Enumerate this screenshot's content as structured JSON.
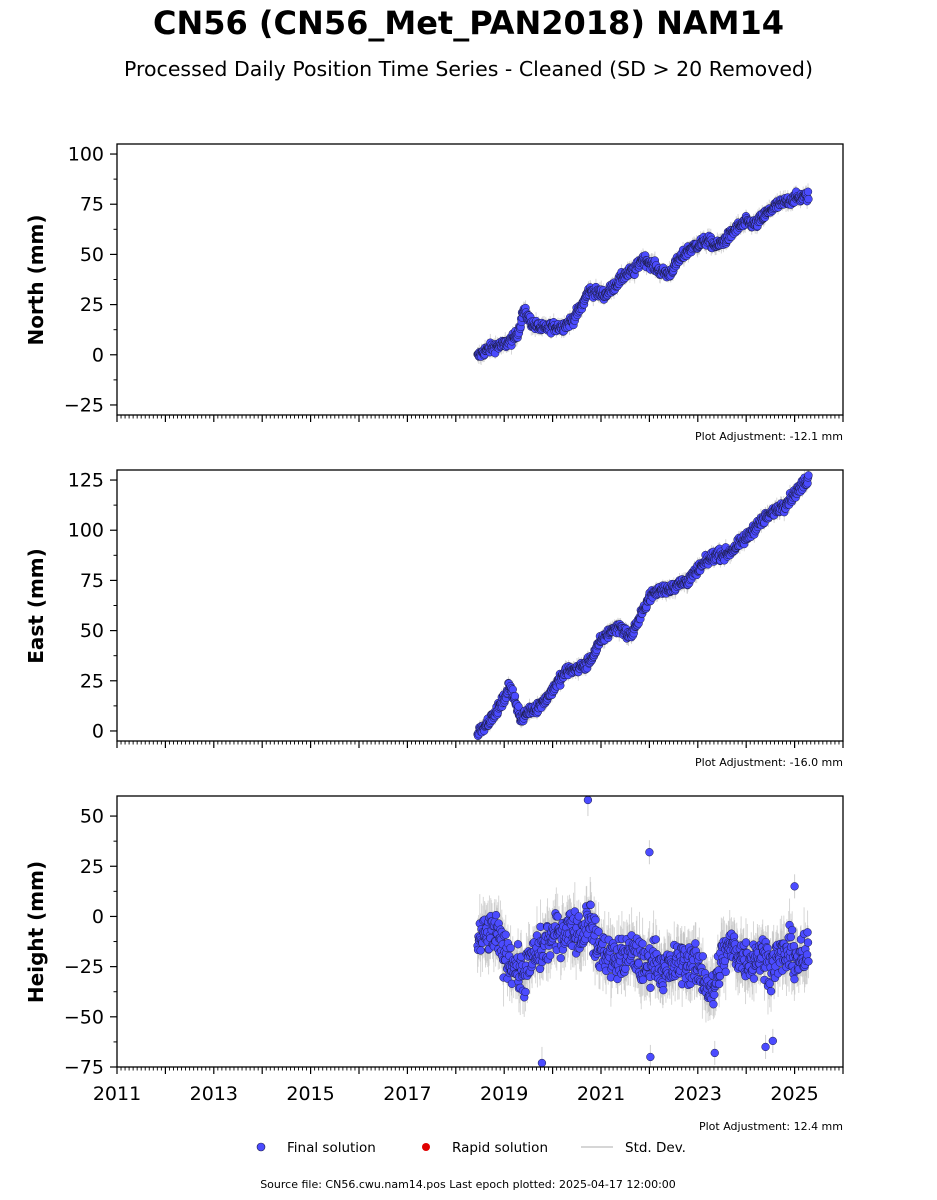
{
  "header": {
    "title": "CN56 (CN56_Met_PAN2018) NAM14",
    "subtitle": "Processed Daily Position Time Series - Cleaned (SD > 20 Removed)"
  },
  "chart_data": [
    {
      "type": "scatter",
      "ylabel": "North (mm)",
      "ylim": [
        -30,
        105
      ],
      "yticks": [
        100,
        75,
        50,
        25,
        0,
        -25
      ],
      "ytick_labels": [
        "100",
        "75",
        "50",
        "25",
        "0",
        "−25"
      ],
      "xlim": [
        2011.0,
        2026.0
      ],
      "adjustment": "Plot Adjustment: -12.1 mm",
      "series": [
        {
          "name": "Final solution",
          "x": [
            2018.45,
            2018.6,
            2018.8,
            2019.0,
            2019.2,
            2019.3,
            2019.4,
            2019.6,
            2019.8,
            2020.0,
            2020.2,
            2020.4,
            2020.6,
            2020.75,
            2020.9,
            2021.1,
            2021.3,
            2021.5,
            2021.7,
            2021.85,
            2022.0,
            2022.2,
            2022.4,
            2022.6,
            2022.8,
            2023.0,
            2023.2,
            2023.4,
            2023.6,
            2023.8,
            2024.0,
            2024.2,
            2024.4,
            2024.6,
            2024.8,
            2025.0,
            2025.29
          ],
          "y": [
            -1,
            2,
            4,
            5,
            8,
            12,
            22,
            15,
            13,
            14,
            14,
            17,
            24,
            32,
            31,
            30,
            35,
            40,
            42,
            48,
            46,
            42,
            40,
            47,
            52,
            55,
            57,
            54,
            58,
            63,
            66,
            65,
            70,
            74,
            76,
            78,
            79
          ]
        }
      ],
      "std_dev": [
        3,
        3,
        3,
        3,
        3,
        3,
        4,
        3,
        3,
        3,
        3,
        3,
        3,
        3,
        3,
        3,
        3,
        3,
        3,
        4,
        3,
        3,
        3,
        3,
        3,
        3,
        3,
        3,
        3,
        3,
        3,
        3,
        3,
        3,
        3,
        3,
        3
      ],
      "spread": 2.5
    },
    {
      "type": "scatter",
      "ylabel": "East (mm)",
      "ylim": [
        -5,
        130
      ],
      "yticks": [
        125,
        100,
        75,
        50,
        25,
        0
      ],
      "ytick_labels": [
        "125",
        "100",
        "75",
        "50",
        "25",
        "0"
      ],
      "xlim": [
        2011.0,
        2026.0
      ],
      "adjustment": "Plot Adjustment: -16.0 mm",
      "series": [
        {
          "name": "Final solution",
          "x": [
            2018.45,
            2018.6,
            2018.8,
            2019.0,
            2019.1,
            2019.2,
            2019.35,
            2019.5,
            2019.7,
            2019.9,
            2020.1,
            2020.3,
            2020.5,
            2020.7,
            2020.85,
            2021.0,
            2021.2,
            2021.4,
            2021.6,
            2021.8,
            2022.0,
            2022.2,
            2022.4,
            2022.6,
            2022.8,
            2023.0,
            2023.2,
            2023.4,
            2023.6,
            2023.8,
            2024.0,
            2024.2,
            2024.4,
            2024.6,
            2024.8,
            2025.0,
            2025.29
          ],
          "y": [
            -1,
            3,
            8,
            16,
            22,
            18,
            5,
            10,
            12,
            17,
            24,
            30,
            31,
            33,
            38,
            45,
            50,
            52,
            47,
            56,
            67,
            70,
            71,
            73,
            75,
            80,
            85,
            88,
            88,
            92,
            96,
            102,
            106,
            110,
            113,
            118,
            126
          ]
        }
      ],
      "std_dev": [
        3,
        3,
        3,
        3,
        3,
        3,
        3,
        3,
        3,
        3,
        3,
        3,
        3,
        3,
        3,
        3,
        3,
        3,
        3,
        3,
        3,
        3,
        3,
        3,
        3,
        3,
        3,
        3,
        3,
        3,
        3,
        3,
        3,
        3,
        3,
        3,
        3
      ],
      "spread": 2.5
    },
    {
      "type": "scatter",
      "ylabel": "Height (mm)",
      "ylim": [
        -75,
        60
      ],
      "yticks": [
        50,
        25,
        0,
        -25,
        -50,
        -75
      ],
      "ytick_labels": [
        "50",
        "25",
        "0",
        "−25",
        "−50",
        "−75"
      ],
      "xlim": [
        2011.0,
        2026.0
      ],
      "xticks": [
        2011,
        2013,
        2015,
        2017,
        2019,
        2021,
        2023,
        2025
      ],
      "xtick_labels": [
        "2011",
        "2013",
        "2015",
        "2017",
        "2019",
        "2021",
        "2023",
        "2025"
      ],
      "adjustment": "Plot Adjustment: 12.4 mm",
      "series": [
        {
          "name": "Final solution",
          "x": [
            2018.45,
            2018.6,
            2018.8,
            2019.0,
            2019.2,
            2019.4,
            2019.6,
            2019.8,
            2020.0,
            2020.2,
            2020.4,
            2020.6,
            2020.75,
            2020.9,
            2021.1,
            2021.3,
            2021.5,
            2021.7,
            2021.9,
            2022.1,
            2022.3,
            2022.5,
            2022.7,
            2022.9,
            2023.1,
            2023.3,
            2023.5,
            2023.7,
            2023.9,
            2024.1,
            2024.3,
            2024.5,
            2024.7,
            2024.9,
            2025.1,
            2025.29,
            2020.73,
            2019.78,
            2022.0,
            2022.02,
            2023.35,
            2024.4,
            2024.55,
            2025.0
          ],
          "y": [
            -12,
            -10,
            -8,
            -18,
            -24,
            -30,
            -20,
            -16,
            -10,
            -8,
            -5,
            -10,
            2,
            -15,
            -18,
            -22,
            -20,
            -18,
            -26,
            -20,
            -28,
            -25,
            -22,
            -24,
            -28,
            -40,
            -20,
            -15,
            -20,
            -22,
            -18,
            -24,
            -20,
            -18,
            -22,
            -20,
            58,
            -73,
            32,
            -70,
            -68,
            -65,
            -62,
            15
          ]
        }
      ],
      "std_dev": [
        10,
        10,
        10,
        10,
        10,
        10,
        10,
        10,
        10,
        10,
        10,
        10,
        12,
        10,
        10,
        10,
        10,
        10,
        10,
        10,
        10,
        10,
        10,
        10,
        10,
        12,
        10,
        10,
        10,
        10,
        10,
        10,
        10,
        10,
        10,
        10,
        8,
        8,
        6,
        6,
        6,
        6,
        6,
        6
      ],
      "spread": 10
    }
  ],
  "legend": {
    "position": "bottom-center",
    "items": [
      {
        "label": "Final solution",
        "color": "#4b4bff",
        "marker": "circle"
      },
      {
        "label": "Rapid solution",
        "color": "#e00000",
        "marker": "circle"
      },
      {
        "label": "Std. Dev.",
        "color": "#c8c8c8",
        "marker": "line"
      }
    ]
  },
  "footer": {
    "source": "Source file: CN56.cwu.nam14.pos  Last epoch plotted: 2025-04-17 12:00:00"
  },
  "colors": {
    "final": "#4b4bff",
    "final_edge": "#1a1a40",
    "rapid": "#e00000",
    "std_dev": "#bdbdbd"
  }
}
